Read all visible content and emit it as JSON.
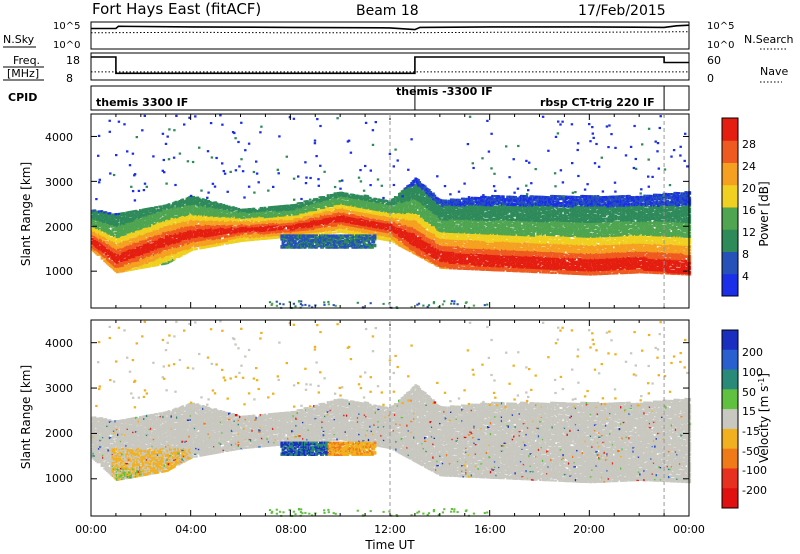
{
  "header": {
    "station": "Fort Hays East (fitACF)",
    "beam": "Beam 18",
    "date": "17/Feb/2015"
  },
  "top_panels": {
    "nsky_label": "N.Sky",
    "nsky_ticks": [
      "10^5",
      "10^0"
    ],
    "nsearch_label": "N.Search",
    "nsearch_ticks": [
      "10^5",
      "10^0"
    ],
    "freq_label_1": "Freq.",
    "freq_label_2": "[MHz]",
    "freq_ticks": [
      "18",
      "8"
    ],
    "nave_label": "Nave",
    "nave_ticks": [
      "60",
      "0"
    ],
    "cpid_label": "CPID",
    "cpid_entries": [
      {
        "text": "themis 3300 IF",
        "start_hour": 0.0
      },
      {
        "text": "themis -3300 IF",
        "start_hour": 13.0
      },
      {
        "text": "rbsp CT-trig 220 IF",
        "start_hour": 17.5
      }
    ],
    "mode_change_hours": [
      1.0,
      13.0,
      23.0
    ]
  },
  "range_panel": {
    "ylabel": "Slant Range [km]",
    "yticks": [
      "4000",
      "3000",
      "2000",
      "1000"
    ]
  },
  "power_colorbar": {
    "label": "Power [dB]",
    "ticks": [
      "28",
      "24",
      "20",
      "16",
      "12",
      "8",
      "4"
    ],
    "colors": [
      "#1b2ee8",
      "#2551b8",
      "#2f8a5a",
      "#4fa550",
      "#f0d020",
      "#f5a020",
      "#ef5a20",
      "#e41e10"
    ]
  },
  "velocity_colorbar": {
    "label": "Velocity [m s",
    "label_sup": "-1",
    "label_end": "]",
    "ticks": [
      "200",
      "100",
      "50",
      "15",
      "-15",
      "-50",
      "-100",
      "-200"
    ],
    "colors": [
      "#1a2fc0",
      "#2a5fd0",
      "#2a8a7a",
      "#60c040",
      "#c8c8c0",
      "#f0b020",
      "#f07a18",
      "#e83020",
      "#e01010"
    ]
  },
  "time_axis": {
    "xlabel": "Time UT",
    "ticks": [
      "00:00",
      "04:00",
      "08:00",
      "12:00",
      "16:00",
      "20:00",
      "00:00"
    ]
  },
  "chart_data": [
    {
      "type": "line",
      "title": "N.Sky / N.Search",
      "x_unit": "hours UT",
      "x_range": [
        0,
        24
      ],
      "series": [
        {
          "name": "N.Sky",
          "x": [
            0,
            1,
            1.1,
            4,
            8,
            12,
            13,
            13.2,
            16,
            20,
            23,
            23.5,
            24
          ],
          "y_log": [
            3.8,
            3.8,
            4.2,
            4.1,
            4.0,
            3.9,
            3.6,
            4.0,
            4.1,
            4.1,
            4.0,
            4.3,
            4.4
          ]
        },
        {
          "name": "N.Search",
          "x": [
            0,
            4,
            8,
            12,
            16,
            20,
            24
          ],
          "y_log": [
            3.0,
            3.1,
            3.0,
            3.0,
            3.1,
            3.1,
            3.2
          ]
        }
      ],
      "ylim_log": [
        0,
        5
      ]
    },
    {
      "type": "line",
      "title": "Freq. [MHz] / Nave",
      "x_range": [
        0,
        24
      ],
      "series": [
        {
          "name": "Freq. [MHz]",
          "x": [
            0,
            1,
            1,
            13,
            13,
            23,
            23,
            24
          ],
          "y": [
            16.5,
            16.5,
            10.5,
            10.5,
            16.5,
            16.5,
            14.5,
            14.5
          ]
        },
        {
          "name": "Nave",
          "x": [
            0,
            24
          ],
          "y": [
            18,
            18
          ]
        }
      ],
      "freq_ylim": [
        8,
        18
      ],
      "nave_ylim": [
        0,
        60
      ]
    },
    {
      "type": "heatmap",
      "title": "Power [dB]",
      "x_range_hours": [
        0,
        24
      ],
      "ylim_km": [
        180,
        4500
      ],
      "scatter_band_km": [
        {
          "hour": 0.0,
          "low": 1500,
          "high": 2400,
          "peak": 1700
        },
        {
          "hour": 1.0,
          "low": 1000,
          "high": 2300,
          "peak": 1300
        },
        {
          "hour": 2.0,
          "low": 1100,
          "high": 2400,
          "peak": 1500
        },
        {
          "hour": 3.0,
          "low": 1200,
          "high": 2500,
          "peak": 1700
        },
        {
          "hour": 4.0,
          "low": 1500,
          "high": 2700,
          "peak": 1850
        },
        {
          "hour": 6.0,
          "low": 1700,
          "high": 2400,
          "peak": 1950
        },
        {
          "hour": 8.0,
          "low": 1800,
          "high": 2500,
          "peak": 2000
        },
        {
          "hour": 10.0,
          "low": 1900,
          "high": 2800,
          "peak": 2200
        },
        {
          "hour": 12.0,
          "low": 1700,
          "high": 2600,
          "peak": 2000
        },
        {
          "hour": 13.0,
          "low": 1400,
          "high": 3100,
          "peak": 1700
        },
        {
          "hour": 14.0,
          "low": 1100,
          "high": 2600,
          "peak": 1350
        },
        {
          "hour": 16.0,
          "low": 1050,
          "high": 2700,
          "peak": 1250
        },
        {
          "hour": 18.0,
          "low": 1000,
          "high": 2700,
          "peak": 1200
        },
        {
          "hour": 20.0,
          "low": 950,
          "high": 2700,
          "peak": 1150
        },
        {
          "hour": 22.0,
          "low": 1000,
          "high": 2700,
          "peak": 1200
        },
        {
          "hour": 24.0,
          "low": 950,
          "high": 2800,
          "peak": 1100
        }
      ]
    },
    {
      "type": "heatmap",
      "title": "Velocity [m s-1]",
      "x_range_hours": [
        0,
        24
      ],
      "ylim_km": [
        180,
        4500
      ],
      "features": [
        {
          "name": "low-velocity ground scatter band",
          "hours": [
            0,
            24
          ],
          "velocity": 0
        },
        {
          "name": "negative velocity patch",
          "hours": [
            0.8,
            4
          ],
          "velocity": -50
        },
        {
          "name": "positive velocity patch",
          "hours": [
            7.5,
            9.5
          ],
          "velocity": 150
        },
        {
          "name": "negative velocity patch",
          "hours": [
            9.5,
            11.5
          ],
          "velocity": -60
        }
      ]
    }
  ]
}
